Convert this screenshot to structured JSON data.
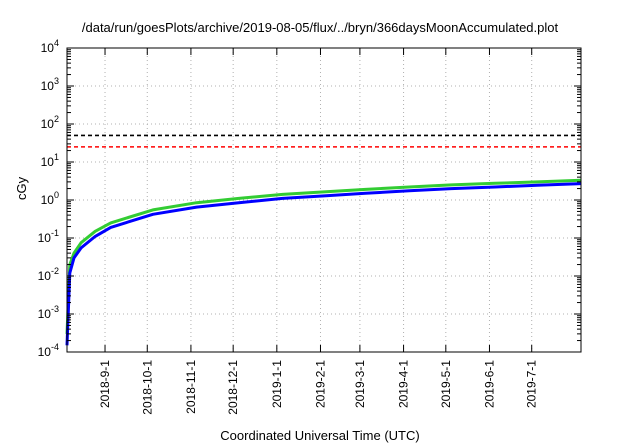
{
  "chart_data": {
    "type": "line",
    "title": "/data/run/goesPlots/archive/2019-08-05/flux/../bryn/366daysMoonAccumulated.plot",
    "xlabel": "Coordinated Universal Time (UTC)",
    "ylabel": "cGy",
    "yscale": "log",
    "ylim": [
      0.0001,
      10000
    ],
    "xlim": [
      "2018-08-05",
      "2019-08-05"
    ],
    "grid": true,
    "x_ticks": [
      "2018-9-1",
      "2018-10-1",
      "2018-11-1",
      "2018-12-1",
      "2019-1-1",
      "2019-2-1",
      "2019-3-1",
      "2019-4-1",
      "2019-5-1",
      "2019-6-1",
      "2019-7-1"
    ],
    "y_ticks": [
      {
        "base": "10",
        "exp": "-4"
      },
      {
        "base": "10",
        "exp": "-3"
      },
      {
        "base": "10",
        "exp": "-2"
      },
      {
        "base": "10",
        "exp": "-1"
      },
      {
        "base": "10",
        "exp": "0"
      },
      {
        "base": "10",
        "exp": "1"
      },
      {
        "base": "10",
        "exp": "2"
      },
      {
        "base": "10",
        "exp": "3"
      },
      {
        "base": "10",
        "exp": "4"
      }
    ],
    "y_tick_values": [
      0.0001,
      0.001,
      0.01,
      0.1,
      1,
      10,
      100,
      1000,
      10000
    ],
    "hlines": [
      {
        "value": 50,
        "color": "#000000",
        "style": "dashed"
      },
      {
        "value": 25,
        "color": "#ff0000",
        "style": "dashed"
      }
    ],
    "series": [
      {
        "color": "#33cc33",
        "x": [
          "2018-08-05",
          "2018-08-07",
          "2018-08-10",
          "2018-08-15",
          "2018-08-25",
          "2018-09-05",
          "2018-10-05",
          "2018-11-05",
          "2018-12-05",
          "2019-01-05",
          "2019-02-05",
          "2019-03-05",
          "2019-04-05",
          "2019-05-05",
          "2019-06-05",
          "2019-07-05",
          "2019-08-05"
        ],
        "values": [
          0.0003,
          0.02,
          0.04,
          0.075,
          0.15,
          0.25,
          0.55,
          0.85,
          1.1,
          1.4,
          1.65,
          1.9,
          2.2,
          2.5,
          2.75,
          3.0,
          3.3
        ]
      },
      {
        "color": "#0000ff",
        "x": [
          "2018-08-05",
          "2018-08-07",
          "2018-08-10",
          "2018-08-15",
          "2018-08-25",
          "2018-09-05",
          "2018-10-05",
          "2018-11-05",
          "2018-12-05",
          "2019-01-05",
          "2019-02-05",
          "2019-03-05",
          "2019-04-05",
          "2019-05-05",
          "2019-06-05",
          "2019-07-05",
          "2019-08-05"
        ],
        "values": [
          0.00015,
          0.012,
          0.03,
          0.055,
          0.11,
          0.19,
          0.42,
          0.65,
          0.85,
          1.1,
          1.3,
          1.5,
          1.75,
          2.0,
          2.2,
          2.45,
          2.7
        ]
      }
    ]
  }
}
